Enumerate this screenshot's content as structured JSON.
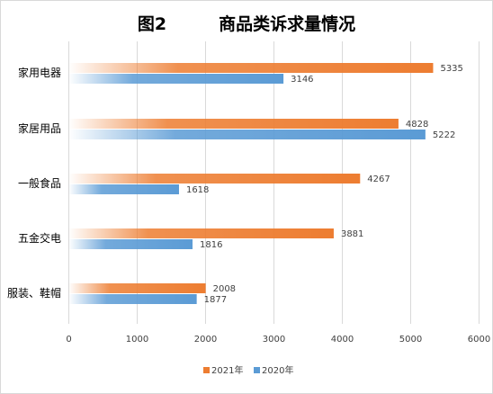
{
  "chart_data": {
    "type": "bar",
    "orientation": "horizontal",
    "title_prefix": "图2",
    "title": "商品类诉求量情况",
    "categories": [
      "家用电器",
      "家居用品",
      "一般食品",
      "五金交电",
      "服装、鞋帽"
    ],
    "series": [
      {
        "name": "2021年",
        "color": "#ed7d31",
        "values": [
          5335,
          4828,
          4267,
          3881,
          2008
        ]
      },
      {
        "name": "2020年",
        "color": "#5b9bd5",
        "values": [
          3146,
          5222,
          1618,
          1816,
          1877
        ]
      }
    ],
    "xlim": [
      0,
      6000
    ],
    "xticks": [
      0,
      1000,
      2000,
      3000,
      4000,
      5000,
      6000
    ],
    "grid": true,
    "legend": "bottom"
  }
}
